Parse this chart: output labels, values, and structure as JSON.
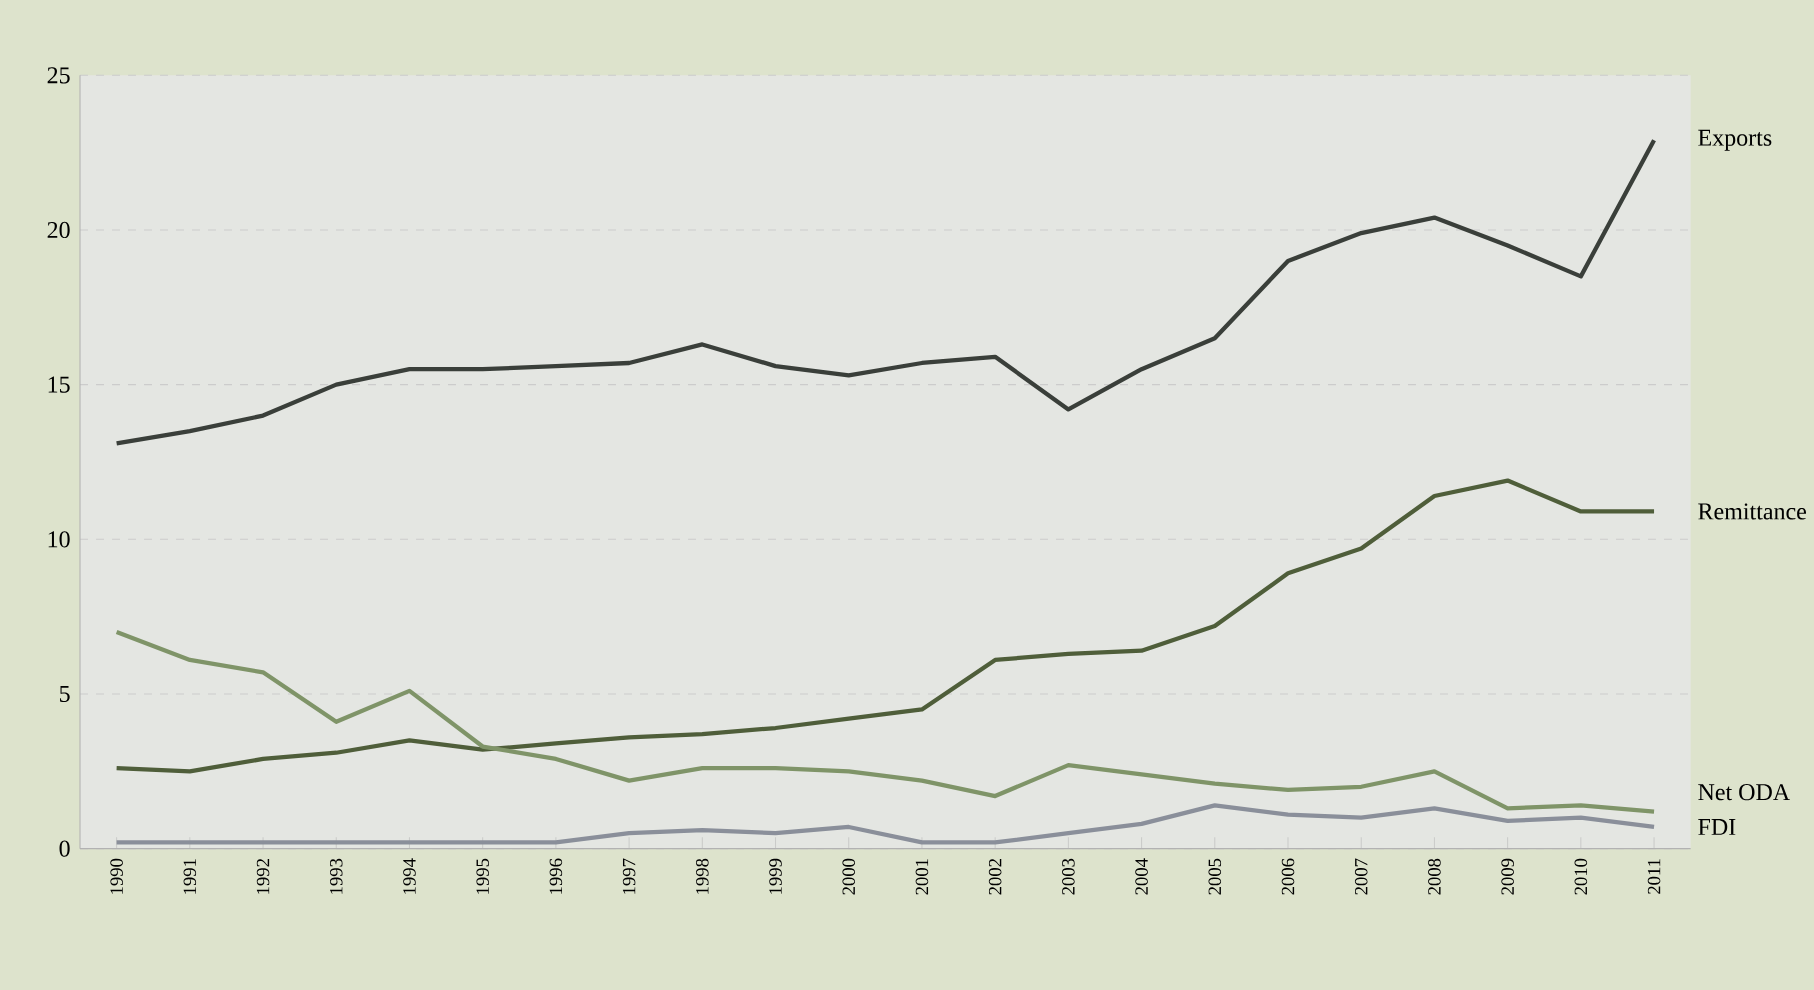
{
  "chart_data": {
    "type": "line",
    "categories": [
      "1990",
      "1991",
      "1992",
      "1993",
      "1994",
      "1995",
      "1996",
      "1997",
      "1998",
      "1999",
      "2000",
      "2001",
      "2002",
      "2003",
      "2004",
      "2005",
      "2006",
      "2007",
      "2008",
      "2009",
      "2010",
      "2011"
    ],
    "series": [
      {
        "name": "Exports",
        "color": "#3a3f3a",
        "values": [
          13.1,
          13.5,
          14.0,
          15.0,
          15.5,
          15.5,
          15.6,
          15.7,
          16.3,
          15.6,
          15.3,
          15.7,
          15.9,
          14.2,
          15.5,
          16.5,
          19.0,
          19.9,
          20.4,
          19.5,
          18.5,
          22.9
        ]
      },
      {
        "name": "Remittance",
        "color": "#4f5e3a",
        "values": [
          2.6,
          2.5,
          2.9,
          3.1,
          3.5,
          3.2,
          3.4,
          3.6,
          3.7,
          3.9,
          4.2,
          4.5,
          6.1,
          6.3,
          6.4,
          7.2,
          8.9,
          9.7,
          11.4,
          11.9,
          10.9,
          10.9
        ]
      },
      {
        "name": "Net ODA",
        "color": "#7f9468",
        "values": [
          7.0,
          6.1,
          5.7,
          4.1,
          5.1,
          3.3,
          2.9,
          2.2,
          2.6,
          2.6,
          2.5,
          2.2,
          1.7,
          2.7,
          2.4,
          2.1,
          1.9,
          2.0,
          2.5,
          1.3,
          1.4,
          1.2
        ]
      },
      {
        "name": "FDI",
        "color": "#8a8f9a",
        "values": [
          0.2,
          0.2,
          0.2,
          0.2,
          0.2,
          0.2,
          0.2,
          0.5,
          0.6,
          0.5,
          0.7,
          0.2,
          0.2,
          0.5,
          0.8,
          1.4,
          1.1,
          1.0,
          1.3,
          0.9,
          1.0,
          0.7
        ]
      }
    ],
    "ylim": [
      0,
      25
    ],
    "yticks": [
      0,
      5,
      10,
      15,
      20,
      25
    ],
    "grid": "y",
    "legend": false,
    "marker": "none",
    "line_style": "solid"
  }
}
